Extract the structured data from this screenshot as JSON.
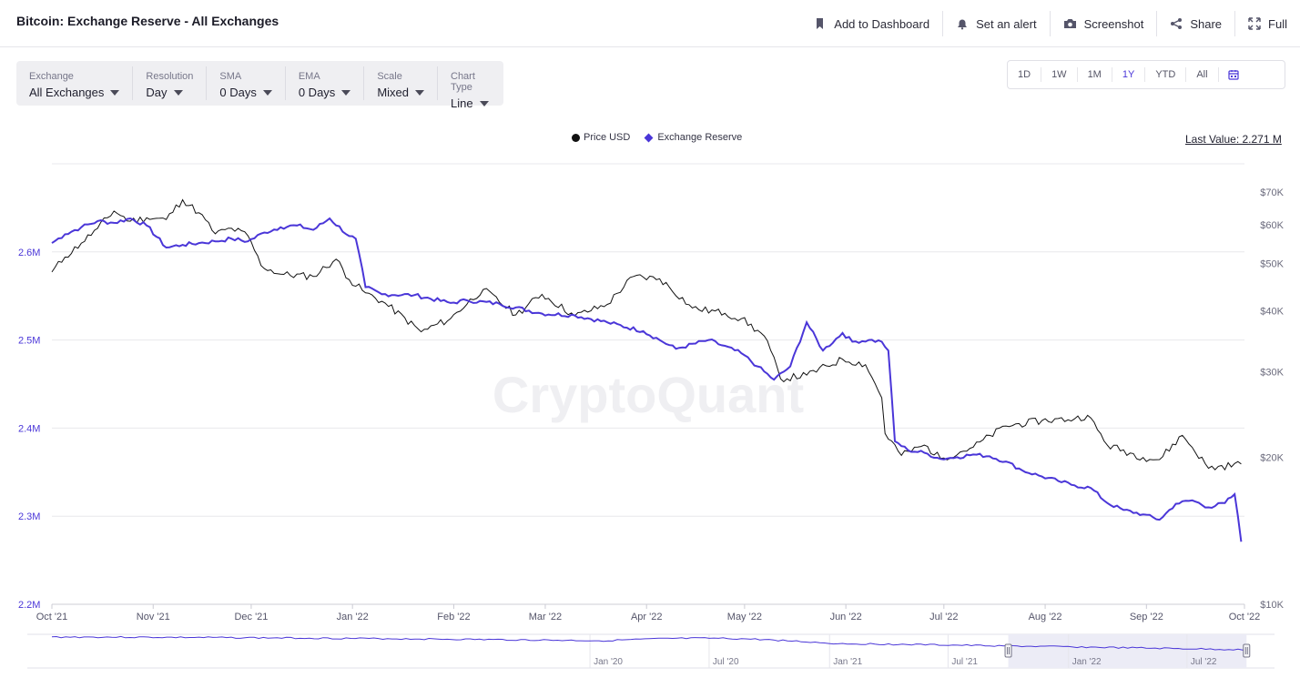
{
  "header": {
    "title": "Bitcoin: Exchange Reserve - All Exchanges",
    "actions": [
      {
        "label": "Add to Dashboard",
        "icon": "bookmark-icon"
      },
      {
        "label": "Set an alert",
        "icon": "bell-icon"
      },
      {
        "label": "Screenshot",
        "icon": "camera-icon"
      },
      {
        "label": "Share",
        "icon": "share-icon"
      },
      {
        "label": "Full",
        "icon": "fullscreen-icon"
      }
    ]
  },
  "filters": [
    {
      "label": "Exchange",
      "value": "All Exchanges"
    },
    {
      "label": "Resolution",
      "value": "Day"
    },
    {
      "label": "SMA",
      "value": "0 Days"
    },
    {
      "label": "EMA",
      "value": "0 Days"
    },
    {
      "label": "Scale",
      "value": "Mixed"
    },
    {
      "label": "Chart Type",
      "value": "Line"
    }
  ],
  "ranges": [
    "1D",
    "1W",
    "1M",
    "1Y",
    "YTD",
    "All"
  ],
  "active_range": "1Y",
  "last_value_text": "Last Value: 2.271 M",
  "watermark": "CryptoQuant",
  "colors": {
    "price": "#111111",
    "reserve": "#4a36d8",
    "accent": "#4a36d8",
    "grid": "#e8e8ec"
  },
  "chart_data": {
    "type": "line",
    "legend": [
      "Price USD",
      "Exchange Reserve"
    ],
    "legend_position": "top-center",
    "x_ticks": [
      "Oct '21",
      "Nov '21",
      "Dec '21",
      "Jan '22",
      "Feb '22",
      "Mar '22",
      "Apr '22",
      "May '22",
      "Jun '22",
      "Jul '22",
      "Aug '22",
      "Sep '22",
      "Oct '22"
    ],
    "left_axis": {
      "ticks": [
        "2.2M",
        "2.3M",
        "2.4M",
        "2.5M",
        "2.6M"
      ],
      "ylim": [
        2200000,
        2700000
      ],
      "scale": "linear"
    },
    "right_axis": {
      "ticks": [
        "$10K",
        "$20K",
        "$30K",
        "$40K",
        "$50K",
        "$60K",
        "$70K"
      ],
      "ylim": [
        10000,
        80000
      ],
      "scale": "log"
    },
    "series": [
      {
        "name": "Exchange Reserve",
        "axis": "left",
        "x": [
          "2021-10-01",
          "2021-10-05",
          "2021-10-10",
          "2021-10-15",
          "2021-10-20",
          "2021-10-25",
          "2021-10-30",
          "2021-11-05",
          "2021-11-10",
          "2021-11-15",
          "2021-11-20",
          "2021-11-25",
          "2021-11-30",
          "2021-12-05",
          "2021-12-10",
          "2021-12-15",
          "2021-12-20",
          "2021-12-25",
          "2021-12-31",
          "2022-01-02",
          "2022-01-05",
          "2022-01-10",
          "2022-01-20",
          "2022-01-31",
          "2022-02-05",
          "2022-02-15",
          "2022-02-28",
          "2022-03-10",
          "2022-03-20",
          "2022-03-31",
          "2022-04-05",
          "2022-04-10",
          "2022-04-20",
          "2022-04-30",
          "2022-05-05",
          "2022-05-10",
          "2022-05-15",
          "2022-05-20",
          "2022-05-25",
          "2022-05-31",
          "2022-06-03",
          "2022-06-08",
          "2022-06-12",
          "2022-06-14",
          "2022-06-16",
          "2022-06-20",
          "2022-06-25",
          "2022-06-30",
          "2022-07-05",
          "2022-07-10",
          "2022-07-15",
          "2022-07-20",
          "2022-07-25",
          "2022-07-31",
          "2022-08-05",
          "2022-08-10",
          "2022-08-15",
          "2022-08-20",
          "2022-08-25",
          "2022-08-31",
          "2022-09-05",
          "2022-09-10",
          "2022-09-15",
          "2022-09-20",
          "2022-09-25",
          "2022-09-28",
          "2022-09-29",
          "2022-09-30"
        ],
        "y": [
          2610000,
          2620000,
          2628000,
          2635000,
          2633000,
          2638000,
          2630000,
          2605000,
          2608000,
          2610000,
          2612000,
          2615000,
          2612000,
          2622000,
          2628000,
          2630000,
          2625000,
          2638000,
          2618000,
          2615000,
          2560000,
          2552000,
          2551000,
          2542000,
          2545000,
          2541000,
          2530000,
          2528000,
          2520000,
          2510000,
          2500000,
          2490000,
          2500000,
          2485000,
          2470000,
          2455000,
          2470000,
          2520000,
          2488000,
          2508000,
          2498000,
          2500000,
          2498000,
          2488000,
          2385000,
          2375000,
          2372000,
          2365000,
          2367000,
          2370000,
          2368000,
          2362000,
          2352000,
          2345000,
          2340000,
          2335000,
          2332000,
          2315000,
          2307000,
          2302000,
          2296000,
          2314000,
          2318000,
          2310000,
          2315000,
          2325000,
          2300000,
          2271000
        ]
      },
      {
        "name": "Price USD",
        "axis": "right",
        "x": [
          "2021-10-01",
          "2021-10-05",
          "2021-10-10",
          "2021-10-15",
          "2021-10-20",
          "2021-10-25",
          "2021-10-30",
          "2021-11-05",
          "2021-11-10",
          "2021-11-15",
          "2021-11-20",
          "2021-11-25",
          "2021-11-30",
          "2021-12-04",
          "2021-12-10",
          "2021-12-20",
          "2021-12-27",
          "2021-12-31",
          "2022-01-05",
          "2022-01-10",
          "2022-01-22",
          "2022-01-31",
          "2022-02-10",
          "2022-02-20",
          "2022-02-28",
          "2022-03-10",
          "2022-03-20",
          "2022-03-28",
          "2022-04-05",
          "2022-04-15",
          "2022-04-25",
          "2022-04-30",
          "2022-05-07",
          "2022-05-12",
          "2022-05-20",
          "2022-05-31",
          "2022-06-07",
          "2022-06-12",
          "2022-06-13",
          "2022-06-18",
          "2022-06-25",
          "2022-06-30",
          "2022-07-10",
          "2022-07-20",
          "2022-07-31",
          "2022-08-10",
          "2022-08-14",
          "2022-08-20",
          "2022-08-31",
          "2022-09-05",
          "2022-09-12",
          "2022-09-20",
          "2022-09-30"
        ],
        "y": [
          48000,
          51500,
          55000,
          59000,
          64000,
          61000,
          62000,
          61500,
          67500,
          63500,
          57500,
          59000,
          57000,
          49500,
          47500,
          47000,
          51000,
          46300,
          43500,
          41800,
          36200,
          38500,
          44200,
          39200,
          43200,
          39000,
          41200,
          47000,
          46500,
          40500,
          39500,
          38500,
          35500,
          29000,
          29500,
          31800,
          31000,
          26500,
          22400,
          20200,
          21200,
          19900,
          21000,
          23200,
          23800,
          24000,
          24400,
          21200,
          20000,
          19800,
          22200,
          19000,
          19400
        ]
      }
    ],
    "navigator": {
      "x_ticks": [
        "Jan '20",
        "Jul '20",
        "Jan '21",
        "Jul '21",
        "Jan '22",
        "Jul '22"
      ],
      "range": [
        "2017-10-01",
        "2022-09-30"
      ],
      "selected": [
        "2021-10-01",
        "2022-09-30"
      ]
    }
  }
}
